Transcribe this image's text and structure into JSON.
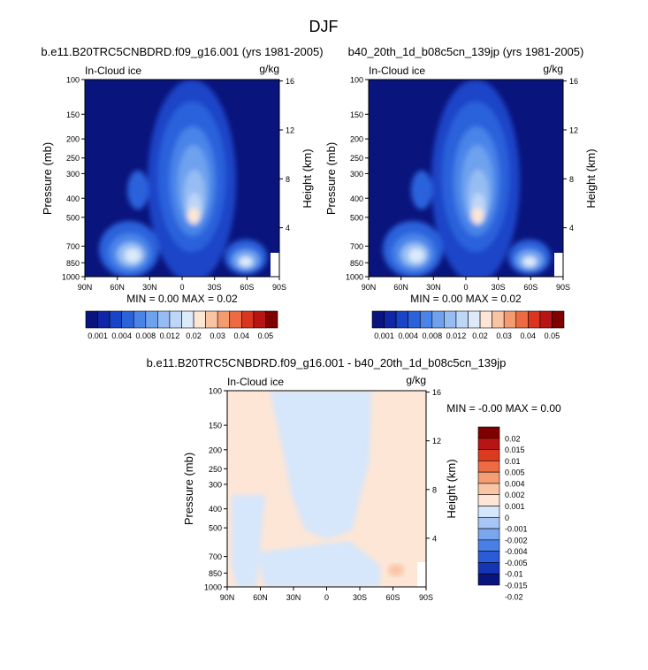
{
  "page": {
    "title": "DJF"
  },
  "colors": {
    "frame": "#000000",
    "abs_scale": [
      "#0a147d",
      "#0f26a8",
      "#1a44c8",
      "#2a62dc",
      "#4a84e8",
      "#6ea2ef",
      "#96bdf3",
      "#bed6f7",
      "#dceafa",
      "#fde6d6",
      "#f9c4a4",
      "#f59b72",
      "#ee6a42",
      "#d9361f",
      "#b71413",
      "#800000"
    ],
    "diff_scale": [
      "#0a147d",
      "#1634b6",
      "#2a5bd8",
      "#4a80e6",
      "#7aa6ef",
      "#a7c6f5",
      "#d6e6fb",
      "#fde6d6",
      "#fac5a5",
      "#f59e76",
      "#ee6a42",
      "#dc3b20",
      "#b71413",
      "#800000"
    ]
  },
  "chart_data": [
    {
      "type": "heatmap",
      "title": "b.e11.B20TRC5CNBDRD.f09_g16.001 (yrs 1981-2005)",
      "left_string": "In-Cloud ice",
      "units": "g/kg",
      "ylabel": "Pressure (mb)",
      "ylabel_right": "Height (km)",
      "xticks": [
        "90N",
        "60N",
        "30N",
        "0",
        "30S",
        "60S",
        "90S"
      ],
      "yticks": [
        "100",
        "150",
        "200",
        "250",
        "300",
        "400",
        "500",
        "700",
        "850",
        "1000"
      ],
      "yticks_right": [
        "16",
        "12",
        "8",
        "4"
      ],
      "min": "0.00",
      "max": "0.02",
      "min_max_text": "MIN =  0.00  MAX =  0.02",
      "colorbar_labels": [
        "0.001",
        "0.004",
        "0.008",
        "0.012",
        "0.02",
        "0.03",
        "0.04",
        "0.05"
      ]
    },
    {
      "type": "heatmap",
      "title": "b40_20th_1d_b08c5cn_139jp (yrs 1981-2005)",
      "left_string": "In-Cloud ice",
      "units": "g/kg",
      "ylabel": "Pressure (mb)",
      "ylabel_right": "Height (km)",
      "xticks": [
        "90N",
        "60N",
        "30N",
        "0",
        "30S",
        "60S",
        "90S"
      ],
      "yticks": [
        "100",
        "150",
        "200",
        "250",
        "300",
        "400",
        "500",
        "700",
        "850",
        "1000"
      ],
      "yticks_right": [
        "16",
        "12",
        "8",
        "4"
      ],
      "min": "0.00",
      "max": "0.02",
      "min_max_text": "MIN =  0.00  MAX =  0.02",
      "colorbar_labels": [
        "0.001",
        "0.004",
        "0.008",
        "0.012",
        "0.02",
        "0.03",
        "0.04",
        "0.05"
      ]
    },
    {
      "type": "heatmap",
      "title": "b.e11.B20TRC5CNBDRD.f09_g16.001 - b40_20th_1d_b08c5cn_139jp",
      "left_string": "In-Cloud ice",
      "units": "g/kg",
      "ylabel": "Pressure (mb)",
      "ylabel_right": "Height (km)",
      "xticks": [
        "90N",
        "60N",
        "30N",
        "0",
        "30S",
        "60S",
        "90S"
      ],
      "yticks": [
        "100",
        "150",
        "200",
        "250",
        "300",
        "400",
        "500",
        "700",
        "850",
        "1000"
      ],
      "yticks_right": [
        "16",
        "12",
        "8",
        "4"
      ],
      "min": "-0.00",
      "max": "0.00",
      "min_max_text": "MIN = -0.00  MAX =  0.00",
      "colorbar_labels": [
        "0.02",
        "0.015",
        "0.01",
        "0.005",
        "0.004",
        "0.002",
        "0.001",
        "0",
        "-0.001",
        "-0.002",
        "-0.004",
        "-0.005",
        "-0.01",
        "-0.015",
        "-0.02"
      ]
    }
  ]
}
